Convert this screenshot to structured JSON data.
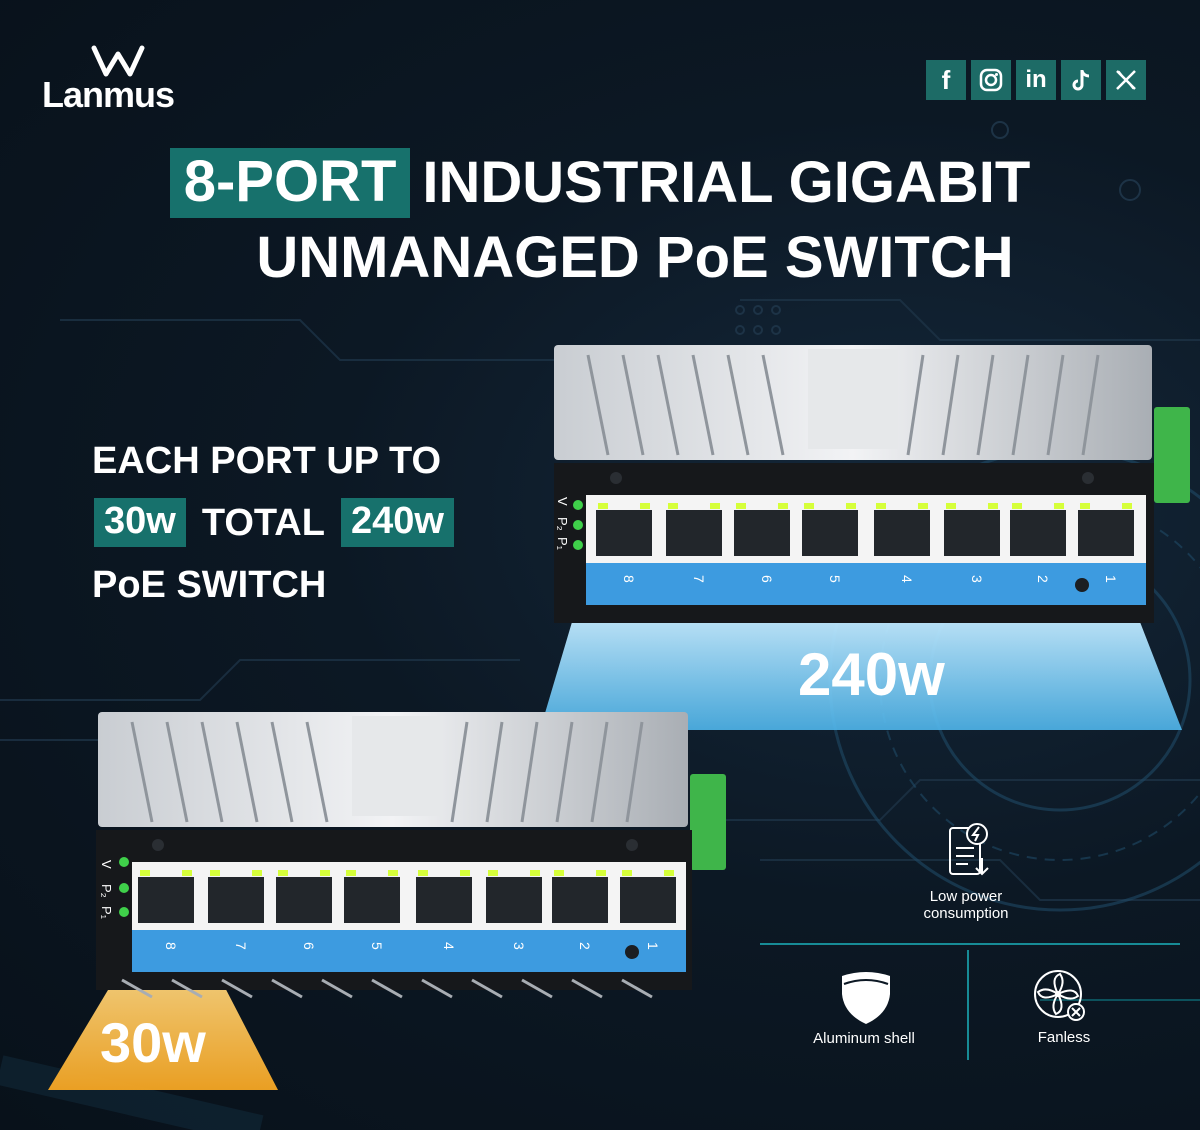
{
  "brand": {
    "name": "Lanmus"
  },
  "social": [
    {
      "name": "facebook-icon",
      "glyph": "f"
    },
    {
      "name": "instagram-icon",
      "glyph": ""
    },
    {
      "name": "linkedin-icon",
      "glyph": "in"
    },
    {
      "name": "tiktok-icon",
      "glyph": ""
    },
    {
      "name": "x-icon",
      "glyph": ""
    }
  ],
  "title": {
    "highlight": "8-PORT",
    "line1_rest": "INDUSTRIAL GIGABIT",
    "line2": "UNMANAGED PoE SWITCH"
  },
  "feature": {
    "line1": "EACH PORT UP TO",
    "per_port": "30w",
    "total_label": "TOTAL",
    "total": "240w",
    "line3": "PoE SWITCH"
  },
  "switch_labels": {
    "leds": [
      "V",
      "P₂",
      "P₁"
    ],
    "ports": [
      "8",
      "7",
      "6",
      "5",
      "4",
      "3",
      "2",
      "1"
    ]
  },
  "callouts": {
    "total_power": "240w",
    "port_power": "30w"
  },
  "icons": [
    {
      "name": "low-power-icon",
      "label": "Low power consumption"
    },
    {
      "name": "shield-icon",
      "label": "Aluminum shell"
    },
    {
      "name": "fanless-icon",
      "label": "Fanless"
    }
  ],
  "colors": {
    "accent": "#17716c",
    "beam_blue": "#4fc3f7",
    "beam_gold": "#f5a623",
    "port_strip": "#3d9be0"
  }
}
